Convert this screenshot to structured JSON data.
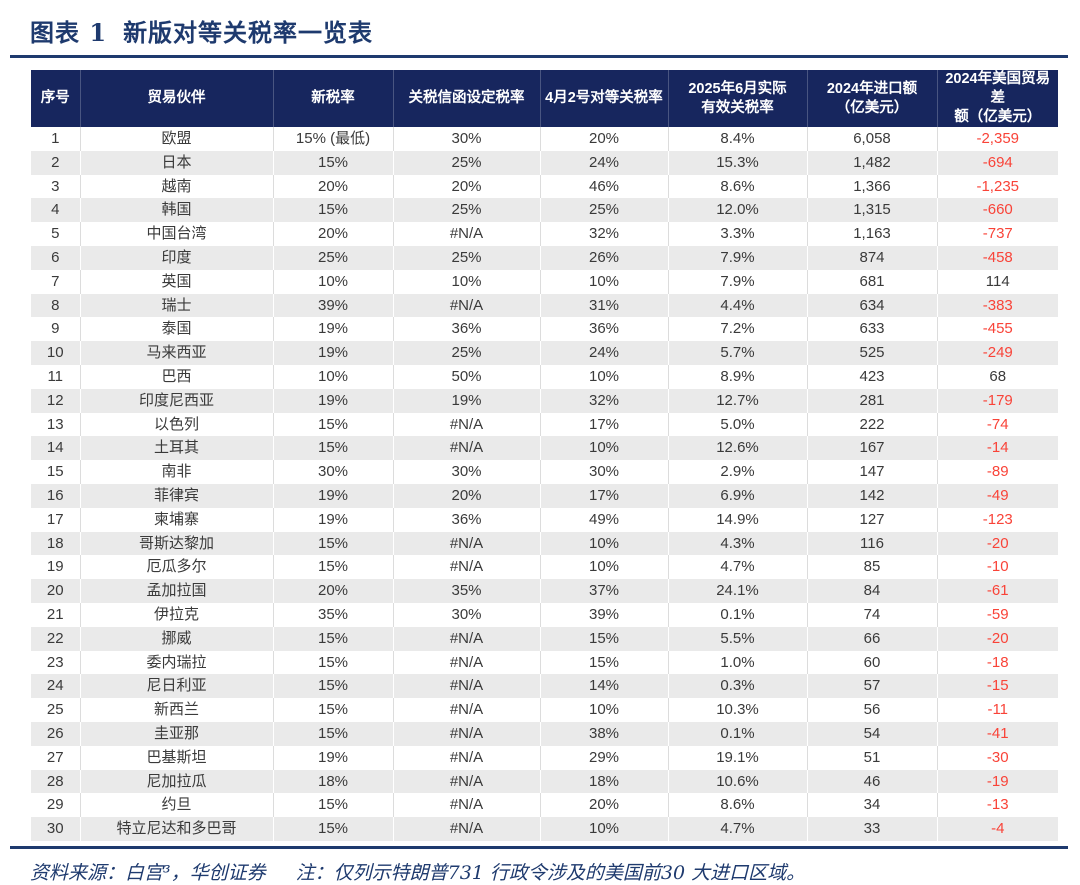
{
  "figure": {
    "label": "图表 1",
    "title": "新版对等关税率一览表"
  },
  "chart_data": {
    "type": "table",
    "title": "新版对等关税率一览表",
    "columns": [
      "序号",
      "贸易伙伴",
      "新税率",
      "关税信函设定税率",
      "4月2号对等关税率",
      "2025年6月实际\n有效关税率",
      "2024年进口额\n（亿美元）",
      "2024年美国贸易差\n额（亿美元）"
    ],
    "rows": [
      [
        "1",
        "欧盟",
        "15% (最低)",
        "30%",
        "20%",
        "8.4%",
        "6,058",
        "-2,359"
      ],
      [
        "2",
        "日本",
        "15%",
        "25%",
        "24%",
        "15.3%",
        "1,482",
        "-694"
      ],
      [
        "3",
        "越南",
        "20%",
        "20%",
        "46%",
        "8.6%",
        "1,366",
        "-1,235"
      ],
      [
        "4",
        "韩国",
        "15%",
        "25%",
        "25%",
        "12.0%",
        "1,315",
        "-660"
      ],
      [
        "5",
        "中国台湾",
        "20%",
        "#N/A",
        "32%",
        "3.3%",
        "1,163",
        "-737"
      ],
      [
        "6",
        "印度",
        "25%",
        "25%",
        "26%",
        "7.9%",
        "874",
        "-458"
      ],
      [
        "7",
        "英国",
        "10%",
        "10%",
        "10%",
        "7.9%",
        "681",
        "114"
      ],
      [
        "8",
        "瑞士",
        "39%",
        "#N/A",
        "31%",
        "4.4%",
        "634",
        "-383"
      ],
      [
        "9",
        "泰国",
        "19%",
        "36%",
        "36%",
        "7.2%",
        "633",
        "-455"
      ],
      [
        "10",
        "马来西亚",
        "19%",
        "25%",
        "24%",
        "5.7%",
        "525",
        "-249"
      ],
      [
        "11",
        "巴西",
        "10%",
        "50%",
        "10%",
        "8.9%",
        "423",
        "68"
      ],
      [
        "12",
        "印度尼西亚",
        "19%",
        "19%",
        "32%",
        "12.7%",
        "281",
        "-179"
      ],
      [
        "13",
        "以色列",
        "15%",
        "#N/A",
        "17%",
        "5.0%",
        "222",
        "-74"
      ],
      [
        "14",
        "土耳其",
        "15%",
        "#N/A",
        "10%",
        "12.6%",
        "167",
        "-14"
      ],
      [
        "15",
        "南非",
        "30%",
        "30%",
        "30%",
        "2.9%",
        "147",
        "-89"
      ],
      [
        "16",
        "菲律宾",
        "19%",
        "20%",
        "17%",
        "6.9%",
        "142",
        "-49"
      ],
      [
        "17",
        "柬埔寨",
        "19%",
        "36%",
        "49%",
        "14.9%",
        "127",
        "-123"
      ],
      [
        "18",
        "哥斯达黎加",
        "15%",
        "#N/A",
        "10%",
        "4.3%",
        "116",
        "-20"
      ],
      [
        "19",
        "厄瓜多尔",
        "15%",
        "#N/A",
        "10%",
        "4.7%",
        "85",
        "-10"
      ],
      [
        "20",
        "孟加拉国",
        "20%",
        "35%",
        "37%",
        "24.1%",
        "84",
        "-61"
      ],
      [
        "21",
        "伊拉克",
        "35%",
        "30%",
        "39%",
        "0.1%",
        "74",
        "-59"
      ],
      [
        "22",
        "挪威",
        "15%",
        "#N/A",
        "15%",
        "5.5%",
        "66",
        "-20"
      ],
      [
        "23",
        "委内瑞拉",
        "15%",
        "#N/A",
        "15%",
        "1.0%",
        "60",
        "-18"
      ],
      [
        "24",
        "尼日利亚",
        "15%",
        "#N/A",
        "14%",
        "0.3%",
        "57",
        "-15"
      ],
      [
        "25",
        "新西兰",
        "15%",
        "#N/A",
        "10%",
        "10.3%",
        "56",
        "-11"
      ],
      [
        "26",
        "圭亚那",
        "15%",
        "#N/A",
        "38%",
        "0.1%",
        "54",
        "-41"
      ],
      [
        "27",
        "巴基斯坦",
        "19%",
        "#N/A",
        "29%",
        "19.1%",
        "51",
        "-30"
      ],
      [
        "28",
        "尼加拉瓜",
        "18%",
        "#N/A",
        "18%",
        "10.6%",
        "46",
        "-19"
      ],
      [
        "29",
        "约旦",
        "15%",
        "#N/A",
        "20%",
        "8.6%",
        "34",
        "-13"
      ],
      [
        "30",
        "特立尼达和多巴哥",
        "15%",
        "#N/A",
        "10%",
        "4.7%",
        "33",
        "-4"
      ]
    ],
    "layout_hints": {
      "striped_rows": true,
      "negative_values_red": true,
      "all_cells_centered": true
    }
  },
  "footer": {
    "source": "资料来源：白宫³，华创证券",
    "note": "注：仅列示特朗普731 行政令涉及的美国前30 大进口区域。"
  },
  "colors": {
    "header_background": "#17265e",
    "accent_navy": "#1e3a6e",
    "negative_red": "#f94338",
    "alt_row_gray": "#eaeaea",
    "cell_text": "#3a3a3a"
  }
}
